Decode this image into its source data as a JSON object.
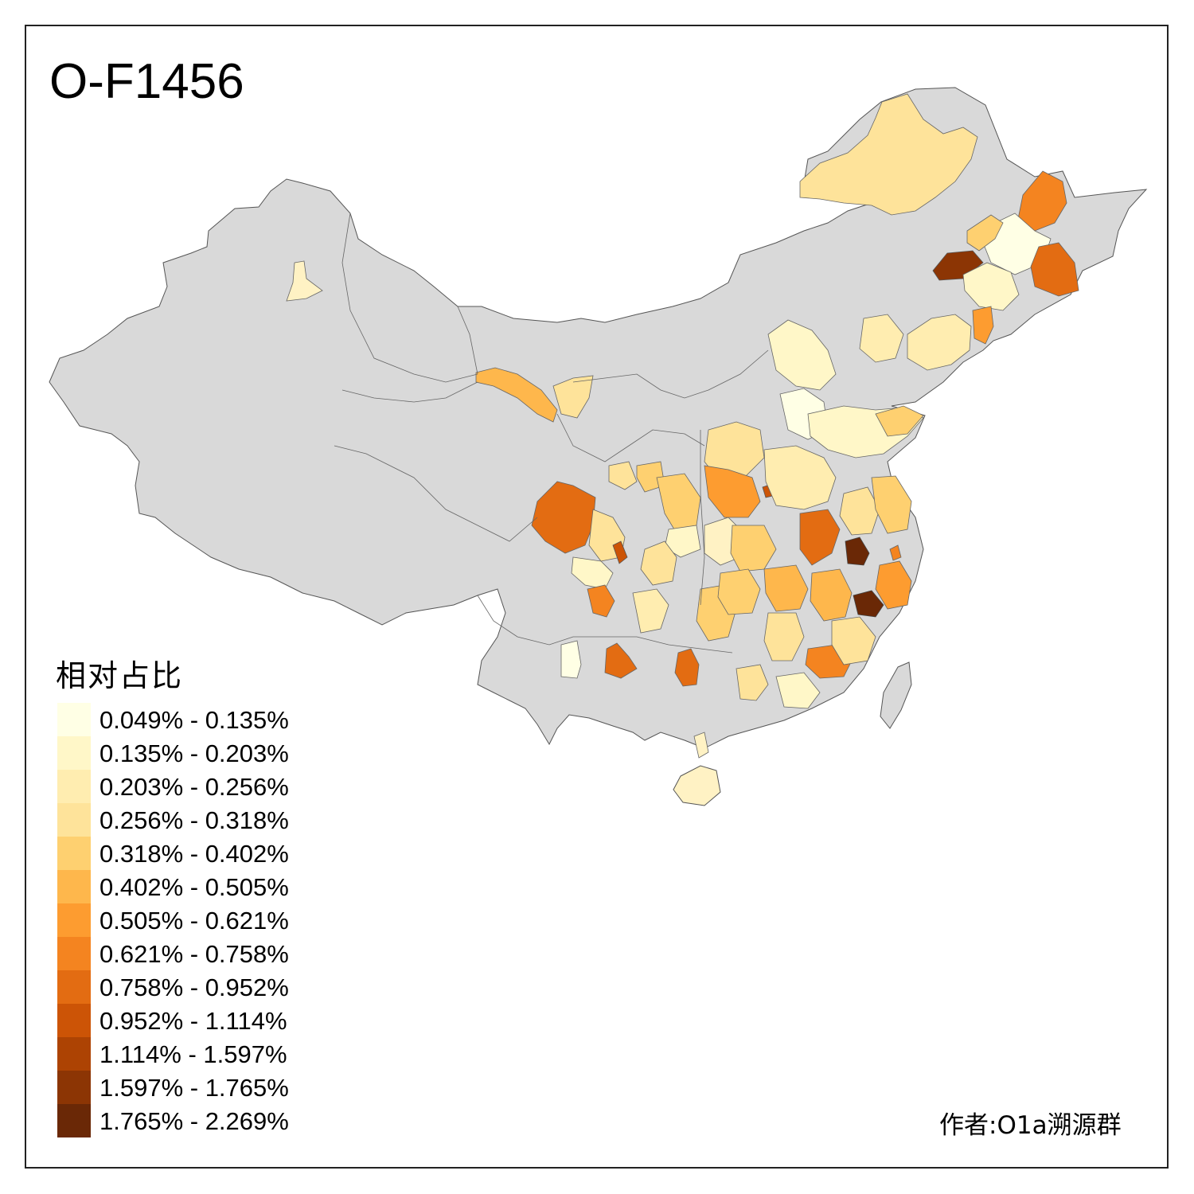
{
  "title": "O-F1456",
  "author": "作者:O1a溯源群",
  "legend": {
    "title": "相对占比",
    "items": [
      {
        "label": "0.049% - 0.135%",
        "color": "#FFFFE5"
      },
      {
        "label": "0.135% - 0.203%",
        "color": "#FFF7C8"
      },
      {
        "label": "0.203% - 0.256%",
        "color": "#FFEDB0"
      },
      {
        "label": "0.256% - 0.318%",
        "color": "#FEE39A"
      },
      {
        "label": "0.318% - 0.402%",
        "color": "#FED070"
      },
      {
        "label": "0.402% - 0.505%",
        "color": "#FEB74C"
      },
      {
        "label": "0.505% - 0.621%",
        "color": "#FD9C30"
      },
      {
        "label": "0.621% - 0.758%",
        "color": "#F48420"
      },
      {
        "label": "0.758% - 0.952%",
        "color": "#E36C12"
      },
      {
        "label": "0.952% - 1.114%",
        "color": "#CC5406"
      },
      {
        "label": "1.114% - 1.597%",
        "color": "#AD4303"
      },
      {
        "label": "1.597% - 1.765%",
        "color": "#8C3504"
      },
      {
        "label": "1.765% - 2.269%",
        "color": "#6A2806"
      }
    ]
  },
  "map": {
    "base_color": "#D9D9D9",
    "border_color": "#555555"
  }
}
